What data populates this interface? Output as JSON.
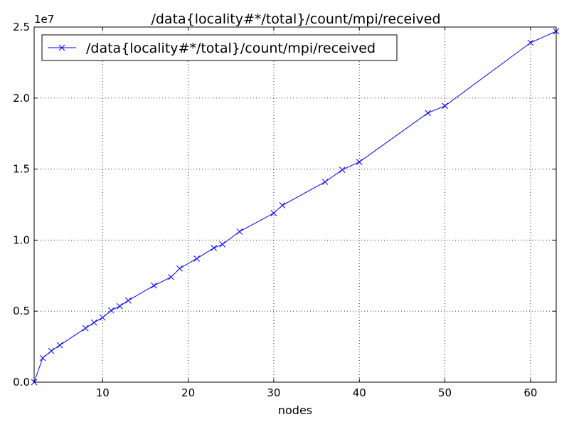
{
  "chart_data": {
    "type": "line",
    "title": "/data{locality#*/total}/count/mpi/received",
    "xlabel": "nodes",
    "ylabel": "",
    "offset_text": "1e7",
    "xlim": [
      2,
      63
    ],
    "ylim": [
      0,
      25000000
    ],
    "x_ticks": [
      10,
      20,
      30,
      40,
      50,
      60
    ],
    "x_tick_labels": [
      "10",
      "20",
      "30",
      "40",
      "50",
      "60"
    ],
    "y_ticks": [
      0,
      5000000,
      10000000,
      15000000,
      20000000,
      25000000
    ],
    "y_tick_labels": [
      "0.0",
      "0.5",
      "1.0",
      "1.5",
      "2.0",
      "2.5"
    ],
    "grid": true,
    "legend_position": "top-left",
    "series": [
      {
        "name": "/data{locality#*/total}/count/mpi/received",
        "color": "#0000ff",
        "marker": "x",
        "x": [
          2,
          3,
          4,
          5,
          8,
          9,
          10,
          11,
          12,
          13,
          16,
          18,
          19,
          21,
          23,
          24,
          26,
          30,
          31,
          36,
          38,
          40,
          48,
          50,
          60,
          63
        ],
        "y": [
          0,
          1700000,
          2200000,
          2600000,
          3800000,
          4200000,
          4550000,
          5050000,
          5350000,
          5750000,
          6800000,
          7400000,
          8000000,
          8700000,
          9450000,
          9700000,
          10600000,
          11900000,
          12450000,
          14100000,
          14950000,
          15500000,
          18950000,
          19450000,
          23900000,
          24700000
        ]
      }
    ]
  }
}
